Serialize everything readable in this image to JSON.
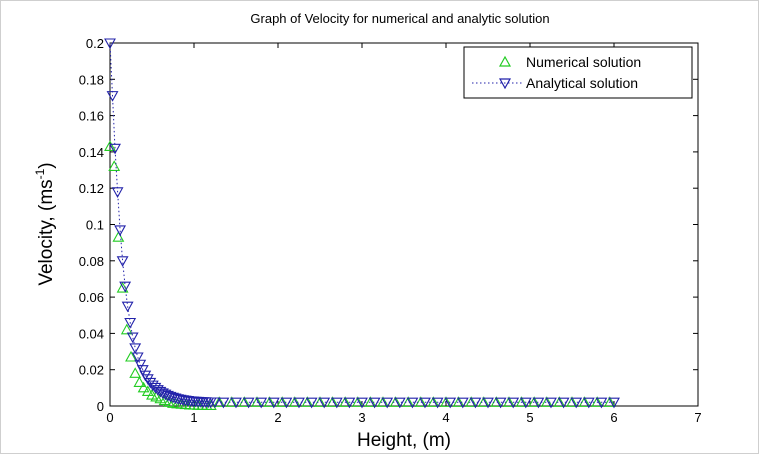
{
  "chart_data": {
    "type": "line",
    "title": "Graph of Velocity for numerical and analytic solution",
    "xlabel": "Height, (m)",
    "ylabel_main": "Velocity, (ms",
    "ylabel_sup": "-1",
    "ylabel_close": ")",
    "xlim": [
      0,
      7
    ],
    "ylim": [
      0,
      0.2
    ],
    "xticks": [
      "0",
      "1",
      "2",
      "3",
      "4",
      "5",
      "6",
      "7"
    ],
    "yticks": [
      "0",
      "0.02",
      "0.04",
      "0.06",
      "0.08",
      "0.1",
      "0.12",
      "0.14",
      "0.16",
      "0.18",
      "0.2"
    ],
    "grid": false,
    "legend_position": "top-right",
    "series": [
      {
        "name": "Numerical solution",
        "color": "#22cc22",
        "marker": "triangle-up",
        "x": [
          0.0,
          0.05,
          0.1,
          0.15,
          0.2,
          0.25,
          0.3,
          0.35,
          0.4,
          0.45,
          0.5,
          0.55,
          0.6,
          0.65,
          0.7,
          0.75,
          0.8,
          0.85,
          0.9,
          0.95,
          1.0,
          1.05,
          1.1,
          1.15,
          1.2,
          1.3,
          1.45,
          1.6,
          1.75,
          1.9,
          2.05,
          2.2,
          2.35,
          2.5,
          2.65,
          2.8,
          2.95,
          3.1,
          3.25,
          3.4,
          3.55,
          3.7,
          3.85,
          4.0,
          4.15,
          4.3,
          4.45,
          4.6,
          4.75,
          4.9,
          5.05,
          5.2,
          5.35,
          5.5,
          5.65,
          5.8,
          5.95
        ],
        "y": [
          0.143,
          0.132,
          0.093,
          0.065,
          0.042,
          0.027,
          0.018,
          0.013,
          0.01,
          0.008,
          0.006,
          0.005,
          0.004,
          0.003,
          0.002,
          0.0015,
          0.0012,
          0.001,
          0.0008,
          0.0006,
          0.0005,
          0.0004,
          0.0004,
          0.0003,
          0.0003,
          0.002,
          0.002,
          0.002,
          0.002,
          0.002,
          0.002,
          0.002,
          0.002,
          0.002,
          0.002,
          0.002,
          0.002,
          0.002,
          0.002,
          0.002,
          0.002,
          0.002,
          0.002,
          0.002,
          0.002,
          0.002,
          0.002,
          0.002,
          0.002,
          0.002,
          0.002,
          0.002,
          0.002,
          0.002,
          0.002,
          0.002,
          0.002
        ]
      },
      {
        "name": "Analytical solution",
        "color": "#2222aa",
        "marker": "triangle-down",
        "line": "dotted",
        "x": [
          0.0,
          0.03,
          0.06,
          0.09,
          0.12,
          0.15,
          0.18,
          0.21,
          0.24,
          0.27,
          0.3,
          0.33,
          0.36,
          0.39,
          0.42,
          0.45,
          0.48,
          0.51,
          0.54,
          0.57,
          0.6,
          0.63,
          0.66,
          0.69,
          0.72,
          0.75,
          0.78,
          0.81,
          0.84,
          0.87,
          0.9,
          0.93,
          0.96,
          0.99,
          1.02,
          1.05,
          1.08,
          1.11,
          1.14,
          1.17,
          1.2,
          1.25,
          1.35,
          1.5,
          1.65,
          1.8,
          1.95,
          2.1,
          2.25,
          2.4,
          2.55,
          2.7,
          2.85,
          3.0,
          3.15,
          3.3,
          3.45,
          3.6,
          3.75,
          3.9,
          4.05,
          4.2,
          4.35,
          4.5,
          4.65,
          4.8,
          4.95,
          5.1,
          5.25,
          5.4,
          5.55,
          5.7,
          5.85,
          6.0
        ],
        "y": [
          0.2,
          0.171,
          0.142,
          0.118,
          0.097,
          0.08,
          0.066,
          0.055,
          0.046,
          0.038,
          0.032,
          0.027,
          0.023,
          0.02,
          0.017,
          0.015,
          0.013,
          0.0115,
          0.0102,
          0.009,
          0.008,
          0.0072,
          0.0065,
          0.0058,
          0.0053,
          0.0048,
          0.0044,
          0.004,
          0.0037,
          0.0034,
          0.0032,
          0.003,
          0.0028,
          0.0027,
          0.0026,
          0.0025,
          0.0024,
          0.0023,
          0.0023,
          0.0022,
          0.0022,
          0.0022,
          0.0021,
          0.0021,
          0.0021,
          0.0021,
          0.0021,
          0.0021,
          0.0021,
          0.0021,
          0.0021,
          0.0021,
          0.0021,
          0.0021,
          0.0021,
          0.0021,
          0.0021,
          0.0021,
          0.0021,
          0.0021,
          0.0021,
          0.0021,
          0.0021,
          0.0021,
          0.0021,
          0.0021,
          0.0021,
          0.0021,
          0.0021,
          0.0021,
          0.0021,
          0.0021,
          0.0021,
          0.0021
        ]
      }
    ]
  }
}
